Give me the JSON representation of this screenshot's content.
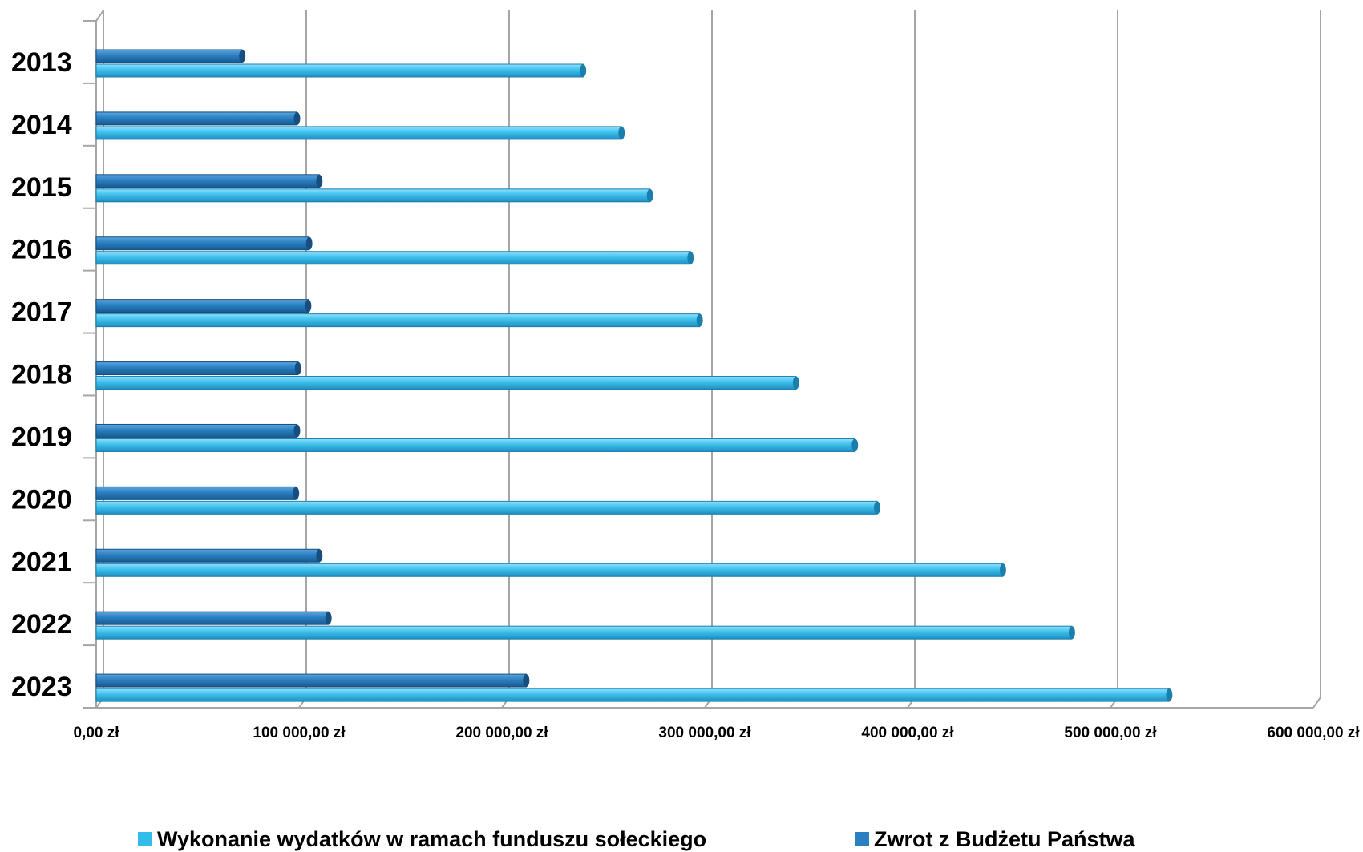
{
  "chart_data": {
    "type": "bar",
    "orientation": "horizontal",
    "categories": [
      "2013",
      "2014",
      "2015",
      "2016",
      "2017",
      "2018",
      "2019",
      "2020",
      "2021",
      "2022",
      "2023"
    ],
    "series": [
      {
        "name": "Wykonanie wydatków w ramach funduszu sołeckiego",
        "color": "#33bbea",
        "values": [
          240000,
          259000,
          273000,
          293000,
          297500,
          345000,
          374000,
          385000,
          447000,
          481000,
          529000
        ]
      },
      {
        "name": "Zwrot z Budżetu Państwa",
        "color": "#2a7fc0",
        "values": [
          72000,
          99000,
          110000,
          105000,
          104500,
          99500,
          99000,
          98500,
          110000,
          114500,
          212000
        ]
      }
    ],
    "xlim": [
      0,
      600000
    ],
    "x_ticks": [
      0,
      100000,
      200000,
      300000,
      400000,
      500000,
      600000
    ],
    "x_tick_labels": [
      "0,00 zł",
      "100  000,00 zł",
      "200  000,00 zł",
      "300  000,00 zł",
      "400  000,00 zł",
      "500  000,00 zł",
      "600  000,00 zł"
    ],
    "grid": "vertical",
    "legend_position": "bottom"
  }
}
